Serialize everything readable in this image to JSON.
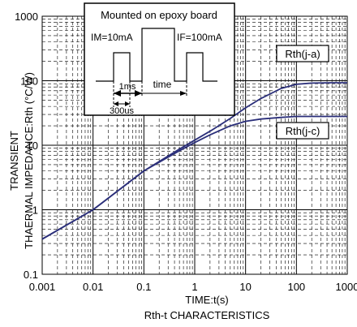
{
  "chart_data": {
    "type": "line",
    "title": "Rth-t CHARACTERISTICS",
    "xlabel": "TIME:t(s)",
    "ylabel_line1": "TRANSIENT",
    "ylabel_line2": "THAERMAL IMPEDANCE:Rth (°C/W)",
    "x_scale": "log",
    "y_scale": "log",
    "xlim": [
      0.001,
      1000
    ],
    "ylim": [
      0.1,
      1000
    ],
    "x_ticks": [
      {
        "value": 0.001,
        "label": "0.001"
      },
      {
        "value": 0.01,
        "label": "0.01"
      },
      {
        "value": 0.1,
        "label": "0.1"
      },
      {
        "value": 1,
        "label": "1"
      },
      {
        "value": 10,
        "label": "10"
      },
      {
        "value": 100,
        "label": "100"
      },
      {
        "value": 1000,
        "label": "1000"
      }
    ],
    "y_ticks": [
      {
        "value": 0.1,
        "label": "0.1"
      },
      {
        "value": 1,
        "label": "1"
      },
      {
        "value": 10,
        "label": "10"
      },
      {
        "value": 100,
        "label": "100"
      },
      {
        "value": 1000,
        "label": "1000"
      }
    ],
    "grid": true,
    "series": [
      {
        "name": "Rth(j-a)",
        "color": "#2b2f7a",
        "x": [
          0.001,
          0.01,
          0.1,
          0.5,
          1,
          2,
          5,
          10,
          20,
          50,
          100,
          200,
          500,
          1000
        ],
        "y": [
          0.35,
          1.0,
          4.0,
          8.7,
          12.0,
          16.5,
          26,
          38,
          53,
          76,
          88,
          92,
          93,
          93
        ]
      },
      {
        "name": "Rth(j-c)",
        "color": "#2b2f7a",
        "x": [
          0.001,
          0.01,
          0.1,
          0.5,
          1,
          2,
          5,
          10,
          20,
          50,
          100,
          200,
          500,
          1000
        ],
        "y": [
          0.35,
          1.0,
          4.0,
          8.2,
          11.0,
          14.5,
          20,
          23.5,
          25.5,
          27,
          28,
          28,
          28,
          28
        ]
      }
    ],
    "inset": {
      "title": "Mounted on epoxy board",
      "im_label": "IM=10mA",
      "if_label": "IF=100mA",
      "label_1ms": "1ms",
      "label_time": "time",
      "label_300us": "300us"
    }
  }
}
